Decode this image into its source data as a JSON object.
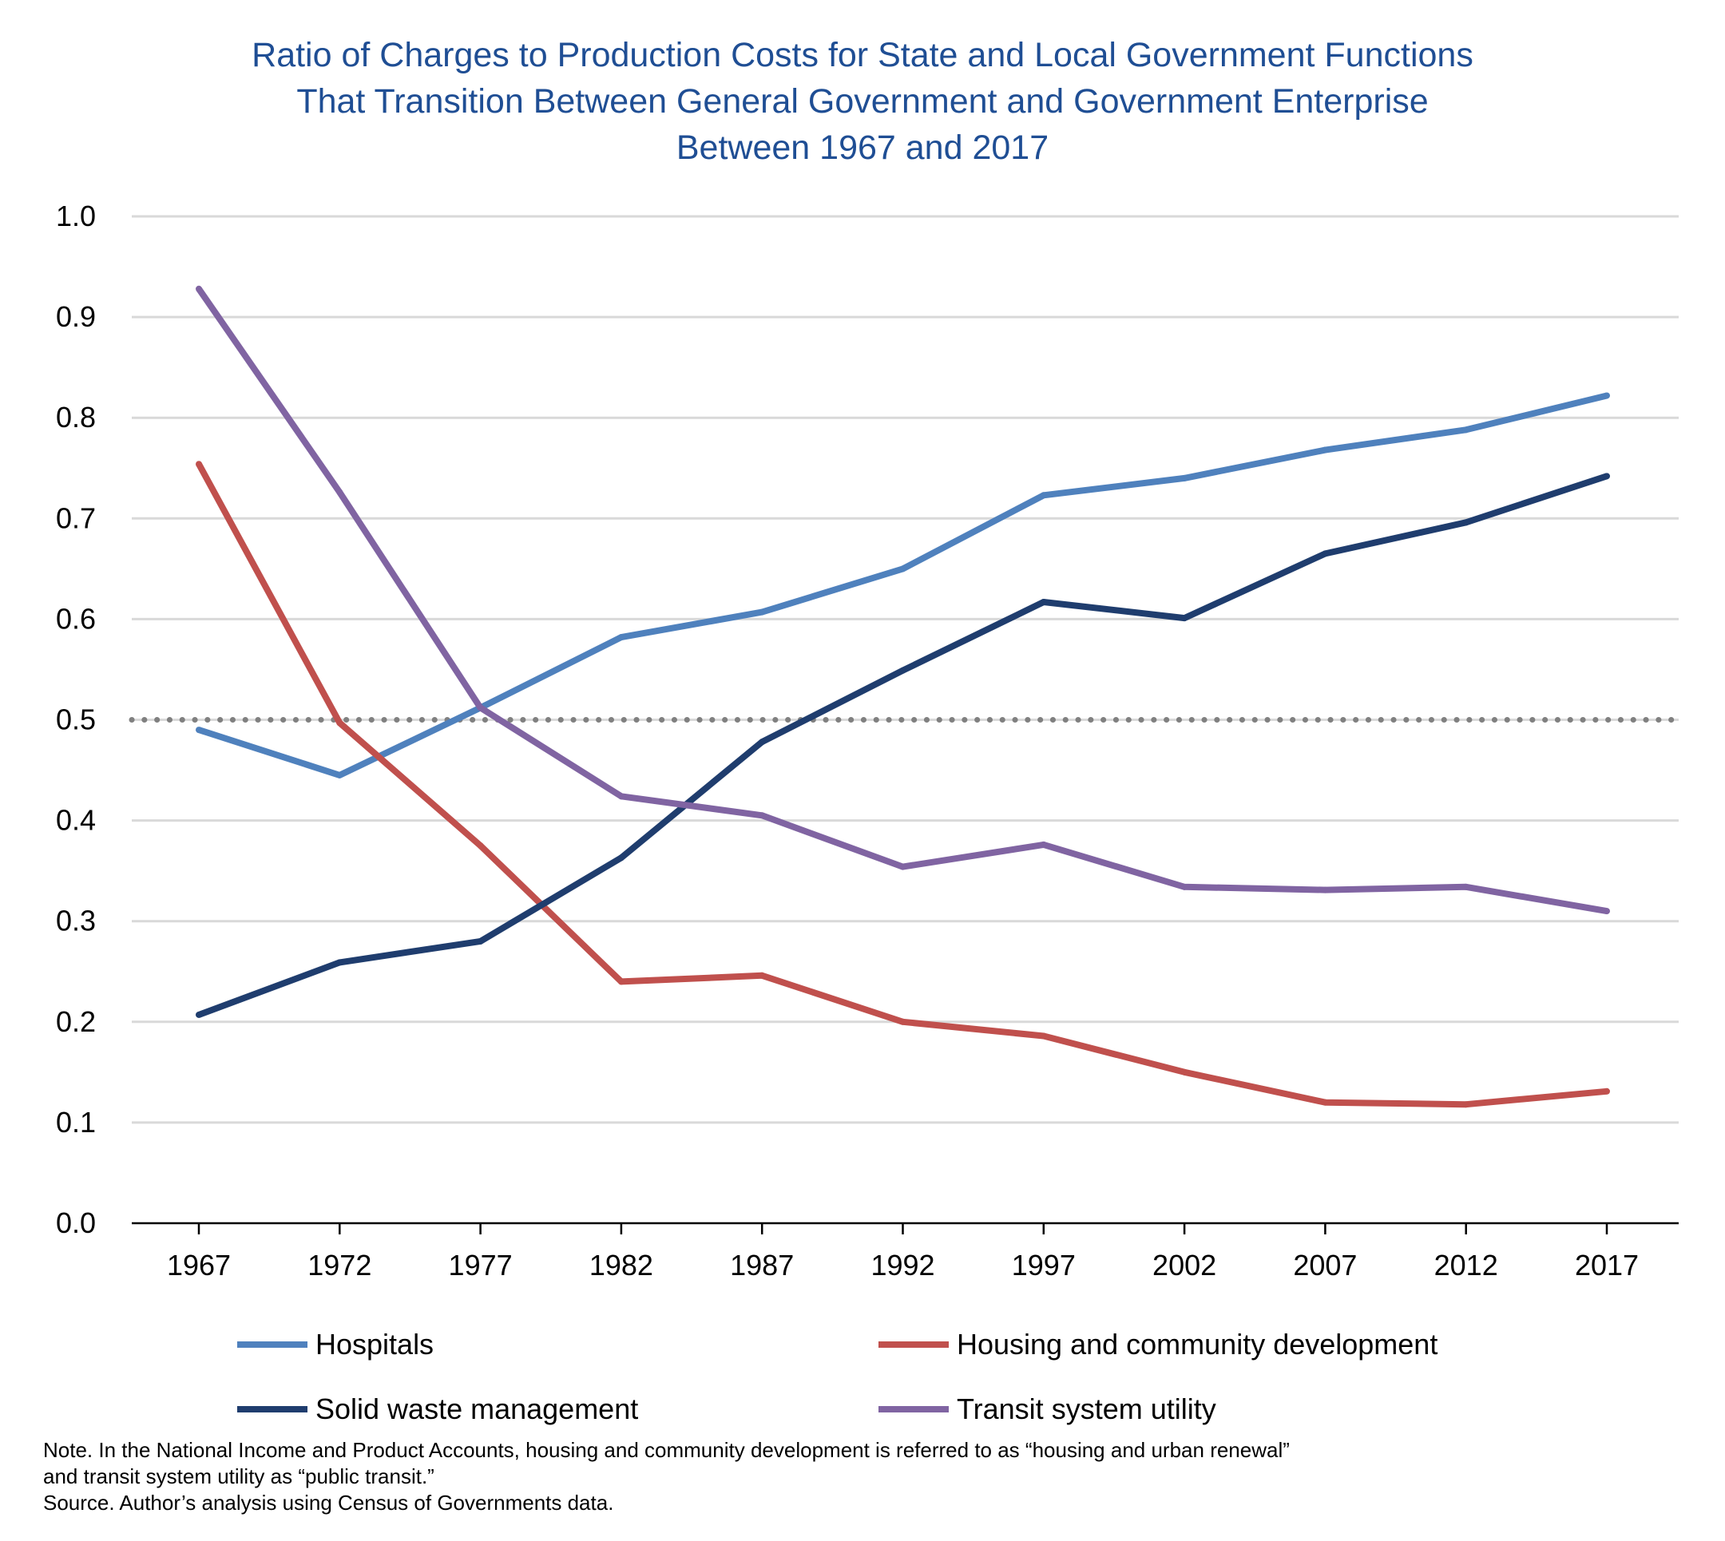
{
  "chart_data": {
    "type": "line",
    "title_lines": [
      "Ratio of Charges to Production Costs for State and Local Government Functions",
      "That Transition Between General Government and Government Enterprise",
      "Between 1967 and 2017"
    ],
    "x": [
      "1967",
      "1972",
      "1977",
      "1982",
      "1987",
      "1992",
      "1997",
      "2002",
      "2007",
      "2012",
      "2017"
    ],
    "y_ticks": [
      "0.0",
      "0.1",
      "0.2",
      "0.3",
      "0.4",
      "0.5",
      "0.6",
      "0.7",
      "0.8",
      "0.9",
      "1.0"
    ],
    "ylim": [
      0,
      1.0
    ],
    "grid": true,
    "reference_line": {
      "y": 0.5,
      "style": "dotted",
      "color": "#808080"
    },
    "series": [
      {
        "name": "Hospitals",
        "color": "#4f81bd",
        "values": [
          0.49,
          0.445,
          0.512,
          0.582,
          0.607,
          0.65,
          0.723,
          0.74,
          0.768,
          0.788,
          0.822
        ]
      },
      {
        "name": "Housing and community development",
        "color": "#c0504d",
        "values": [
          0.754,
          0.497,
          0.375,
          0.24,
          0.246,
          0.2,
          0.186,
          0.15,
          0.12,
          0.118,
          0.131
        ]
      },
      {
        "name": "Solid waste management",
        "color": "#1f3d6e",
        "values": [
          0.207,
          0.259,
          0.28,
          0.363,
          0.478,
          0.549,
          0.617,
          0.601,
          0.665,
          0.696,
          0.742
        ]
      },
      {
        "name": "Transit system utility",
        "color": "#8064a2",
        "values": [
          0.928,
          0.726,
          0.512,
          0.424,
          0.405,
          0.354,
          0.376,
          0.334,
          0.331,
          0.334,
          0.31
        ]
      }
    ],
    "legend_position": "bottom",
    "note_lines": [
      "Note. In the National Income and Product Accounts, housing and community development is referred to as “housing and urban renewal”",
      "and transit system utility as “public transit.”",
      "Source. Author’s analysis using Census of Governments data."
    ]
  }
}
